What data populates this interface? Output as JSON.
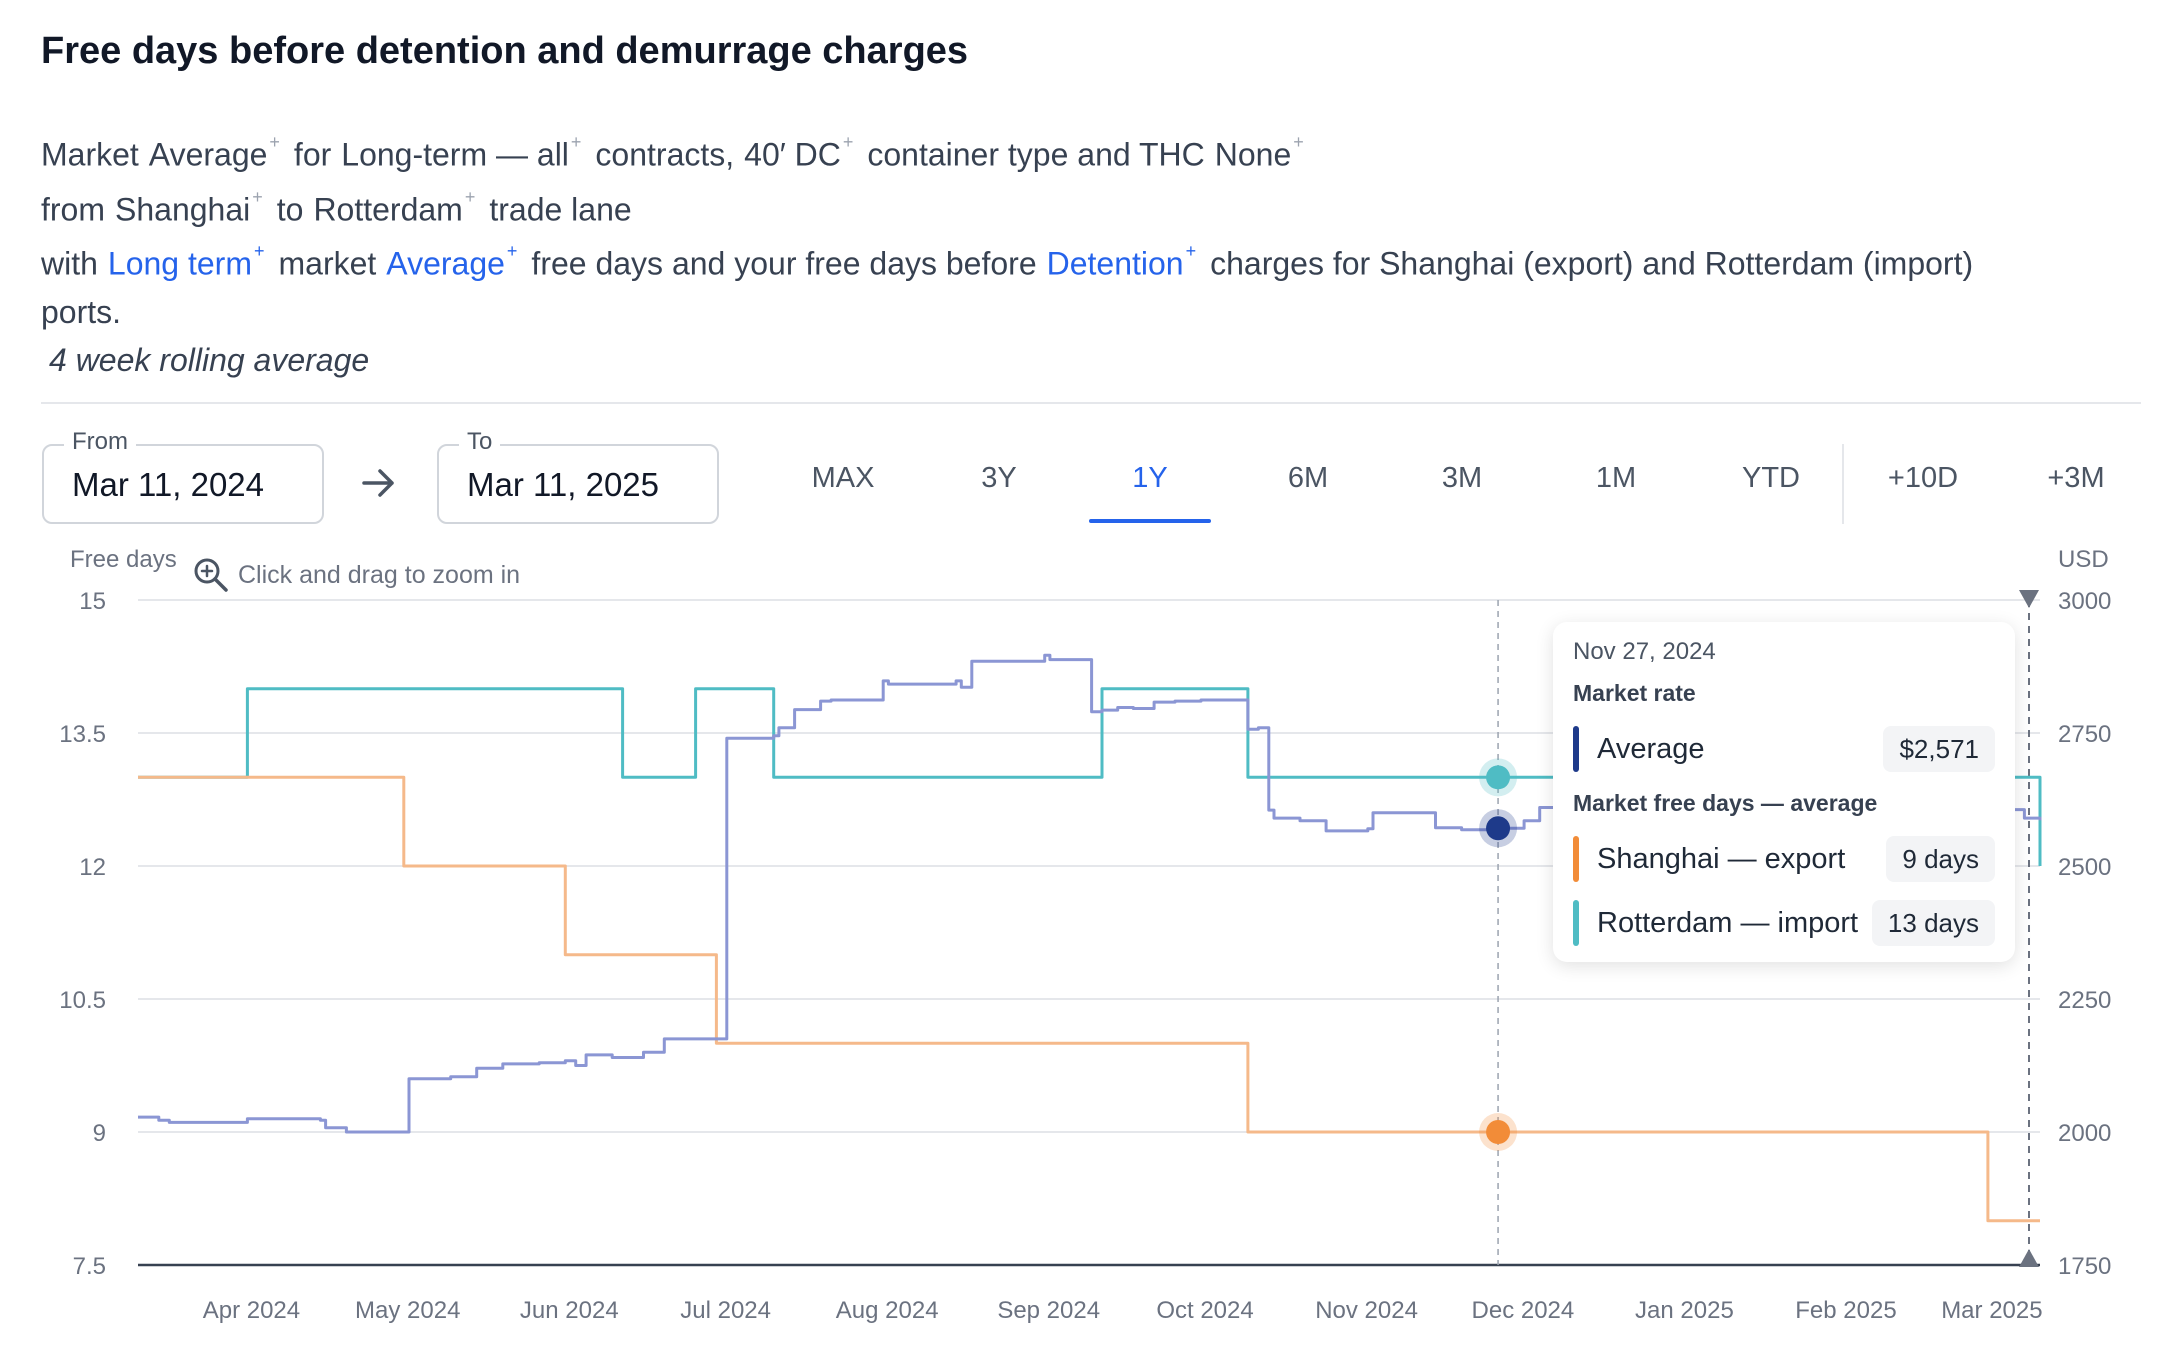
{
  "header": {
    "title": "Free days before detention and demurrage charges"
  },
  "description": {
    "l1_market": "Market",
    "l1_average": "Average",
    "l1_for": "for",
    "l1_longterm": "Long-term — all",
    "l1_contracts": "contracts,",
    "l1_container": "40′ DC",
    "l1_ctype": "container type and THC",
    "l1_none": "None",
    "l2_from": "from",
    "l2_origin": "Shanghai",
    "l2_to": "to",
    "l2_dest": "Rotterdam",
    "l2_lane": "trade lane",
    "l3_with": "with",
    "l3_term": "Long term",
    "l3_market": "market",
    "l3_average": "Average",
    "l3_text": "free days and your free days before",
    "l3_detention": "Detention",
    "l3_tail": "charges for Shanghai (export) and Rotterdam (import)",
    "l4_ports": "ports.",
    "rolling": "4 week rolling average",
    "plus": "+"
  },
  "controls": {
    "from_label": "From",
    "from_value": "Mar 11, 2024",
    "to_label": "To",
    "to_value": "Mar 11, 2025",
    "ranges": [
      "MAX",
      "3Y",
      "1Y",
      "6M",
      "3M",
      "1M",
      "YTD"
    ],
    "active_range": "1Y",
    "extends": [
      "+10D",
      "+3M"
    ]
  },
  "chart_meta": {
    "left_axis_title": "Free days",
    "right_axis_title": "USD",
    "zoom_hint": "Click and drag to zoom in"
  },
  "tooltip": {
    "date": "Nov 27, 2024",
    "section_rate": "Market rate",
    "average_label": "Average",
    "average_value": "$2,571",
    "section_days": "Market free days — average",
    "shanghai_label": "Shanghai — export",
    "shanghai_value": "9 days",
    "rotterdam_label": "Rotterdam — import",
    "rotterdam_value": "13 days"
  },
  "colors": {
    "rate": "#8b96d4",
    "rate_marker": "#1e3a8a",
    "shanghai": "#f5b98a",
    "shanghai_marker": "#f28c38",
    "rotterdam": "#4fbcc4",
    "rotterdam_marker": "#4fbcc4",
    "accent": "#2563eb"
  },
  "chart_data": {
    "type": "line",
    "title": "Free days before detention and demurrage charges",
    "xlabel": "",
    "ylabel": "Free days",
    "y2label": "USD",
    "xlim": [
      "2024-03-11",
      "2025-03-11"
    ],
    "ylim": [
      7.5,
      15
    ],
    "y2lim": [
      1750,
      3000
    ],
    "y_ticks": [
      7.5,
      9,
      10.5,
      12,
      13.5,
      15
    ],
    "y_tick_labels": [
      "7.5",
      "9",
      "10.5",
      "12",
      "13.5",
      "15"
    ],
    "y2_ticks": [
      1750,
      2000,
      2250,
      2500,
      2750,
      3000
    ],
    "x_ticks": [
      "2024-04-01",
      "2024-05-01",
      "2024-06-01",
      "2024-07-01",
      "2024-08-01",
      "2024-09-01",
      "2024-10-01",
      "2024-11-01",
      "2024-12-01",
      "2025-01-01",
      "2025-02-01",
      "2025-03-01"
    ],
    "x_tick_labels": [
      "Apr 2024",
      "May 2024",
      "Jun 2024",
      "Jul 2024",
      "Aug 2024",
      "Sep 2024",
      "Oct 2024",
      "Nov 2024",
      "Dec 2024",
      "Jan 2025",
      "Feb 2025",
      "Mar 2025"
    ],
    "grid": true,
    "step": true,
    "highlight_date": "2024-11-27",
    "series": [
      {
        "name": "Rotterdam — import",
        "axis": "left",
        "x": [
          "2024-03-11",
          "2024-04-01",
          "2024-06-12",
          "2024-06-26",
          "2024-07-11",
          "2024-09-12",
          "2024-10-10",
          "2025-03-11"
        ],
        "y": [
          13,
          14,
          13,
          14,
          13,
          14,
          13,
          12
        ]
      },
      {
        "name": "Shanghai — export",
        "axis": "left",
        "x": [
          "2024-03-11",
          "2024-05-01",
          "2024-06-01",
          "2024-06-30",
          "2024-07-11",
          "2024-10-10",
          "2025-03-01",
          "2025-03-11"
        ],
        "y": [
          13,
          12,
          11,
          10,
          10,
          9,
          8,
          8
        ]
      },
      {
        "name": "Average",
        "axis": "right",
        "x": [
          "2024-03-11",
          "2024-03-15",
          "2024-03-17",
          "2024-04-01",
          "2024-04-15",
          "2024-04-16",
          "2024-04-20",
          "2024-05-01",
          "2024-05-02",
          "2024-05-10",
          "2024-05-15",
          "2024-05-20",
          "2024-05-27",
          "2024-06-01",
          "2024-06-03",
          "2024-06-05",
          "2024-06-10",
          "2024-06-16",
          "2024-06-20",
          "2024-07-01",
          "2024-07-02",
          "2024-07-11",
          "2024-07-12",
          "2024-07-15",
          "2024-07-20",
          "2024-07-22",
          "2024-08-01",
          "2024-08-02",
          "2024-08-15",
          "2024-08-16",
          "2024-08-18",
          "2024-09-01",
          "2024-09-02",
          "2024-09-10",
          "2024-09-12",
          "2024-09-15",
          "2024-09-18",
          "2024-09-22",
          "2024-09-26",
          "2024-10-01",
          "2024-10-10",
          "2024-10-12",
          "2024-10-14",
          "2024-10-15",
          "2024-10-20",
          "2024-10-25",
          "2024-11-01",
          "2024-11-02",
          "2024-11-03",
          "2024-11-15",
          "2024-11-20",
          "2024-11-27",
          "2024-12-02",
          "2024-12-05",
          "2024-12-10",
          "2025-03-08",
          "2025-03-11"
        ],
        "y": [
          2028,
          2022,
          2018,
          2025,
          2022,
          2008,
          2000,
          2000,
          2100,
          2104,
          2120,
          2128,
          2130,
          2134,
          2125,
          2145,
          2140,
          2150,
          2175,
          2175,
          2740,
          2745,
          2760,
          2794,
          2810,
          2812,
          2848,
          2842,
          2848,
          2836,
          2885,
          2896,
          2888,
          2790,
          2793,
          2798,
          2796,
          2808,
          2810,
          2812,
          2757,
          2760,
          2605,
          2590,
          2585,
          2566,
          2566,
          2570,
          2600,
          2572,
          2568,
          2571,
          2585,
          2610,
          2606,
          2590,
          2586
        ]
      }
    ]
  }
}
